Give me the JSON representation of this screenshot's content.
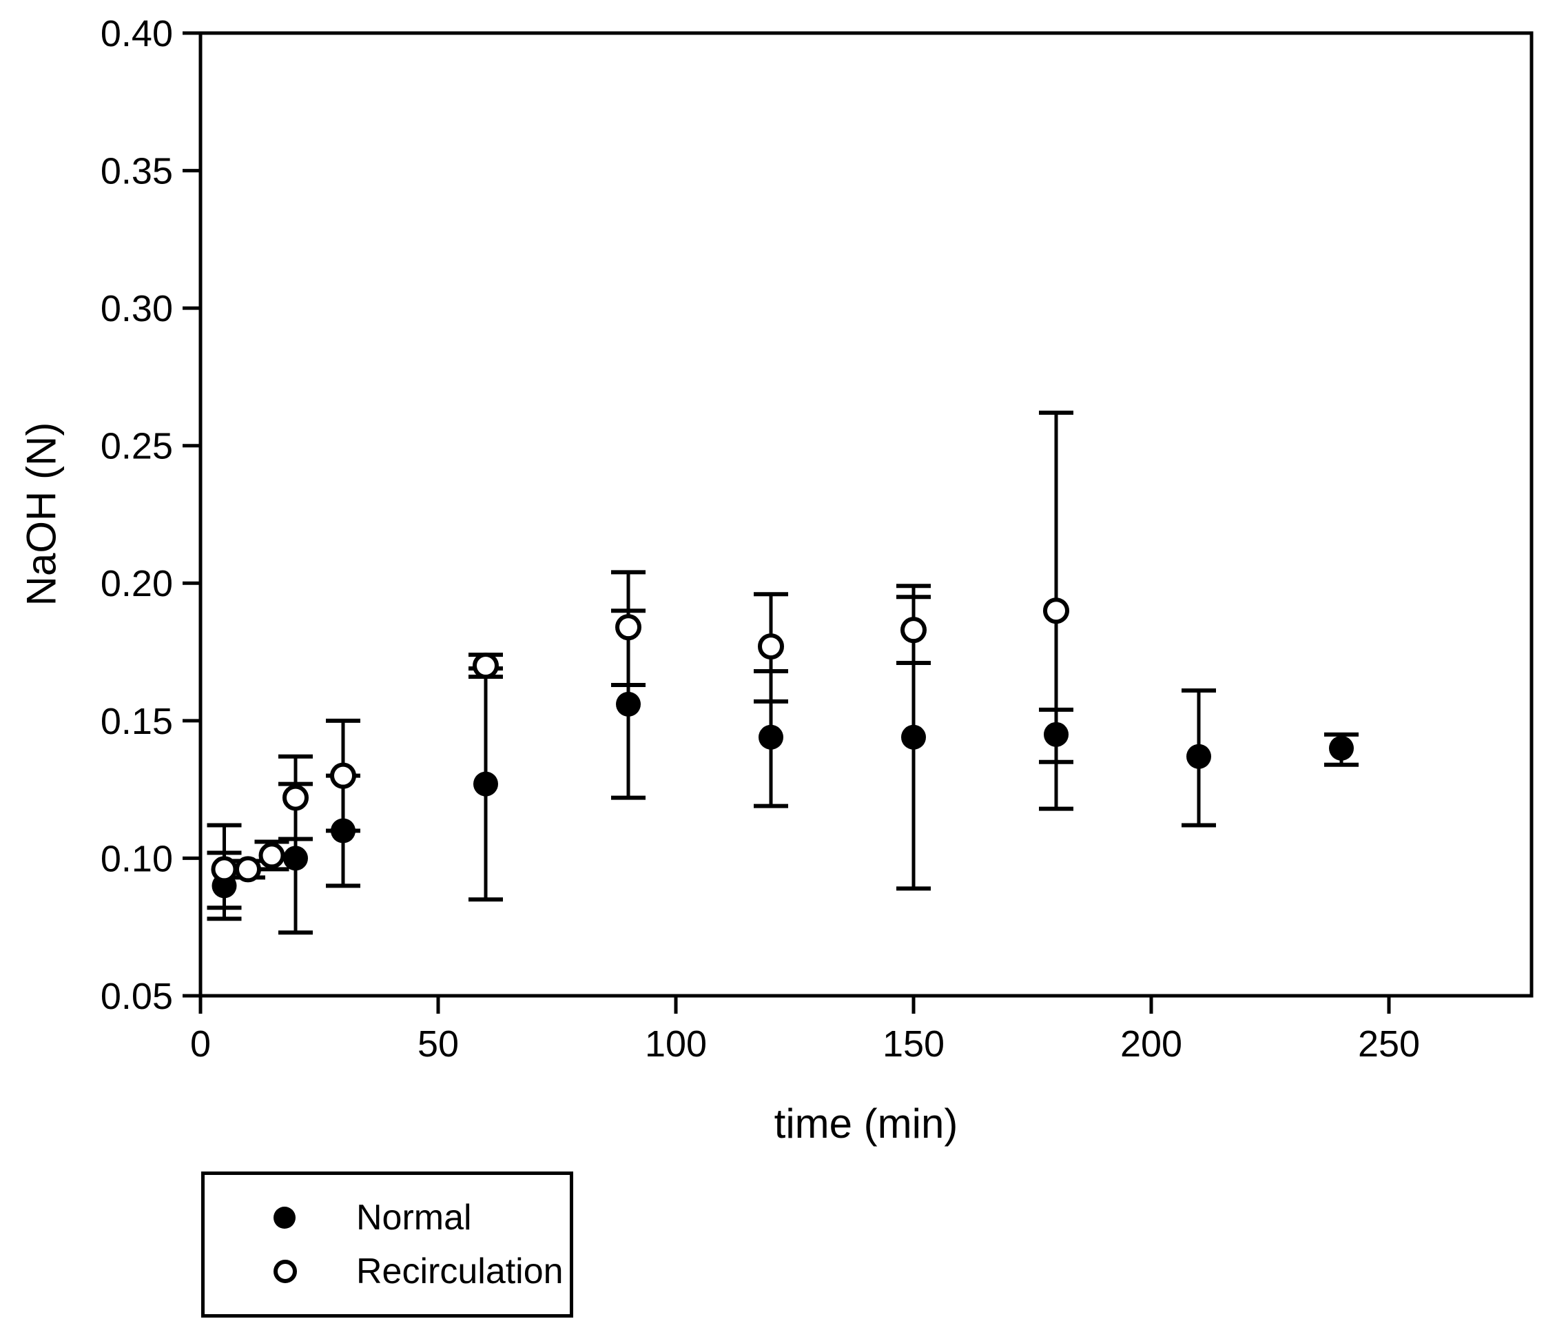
{
  "figure": {
    "background_color": "#ffffff",
    "axis_color": "#000000",
    "text_color": "#000000"
  },
  "legend": {
    "items": [
      {
        "label": "Normal",
        "marker": "filled-circle"
      },
      {
        "label": "Recirculation",
        "marker": "open-circle"
      }
    ]
  },
  "chart_data": {
    "type": "scatter",
    "title": "",
    "xlabel": "time (min)",
    "ylabel": "NaOH (N)",
    "xlim": [
      0,
      280
    ],
    "ylim": [
      0.05,
      0.4
    ],
    "x_ticks": [
      0,
      50,
      100,
      150,
      200,
      250
    ],
    "y_ticks": [
      0.05,
      0.1,
      0.15,
      0.2,
      0.25,
      0.3,
      0.35,
      0.4
    ],
    "y_tick_decimals": 2,
    "grid": false,
    "error_bars": true,
    "legend_position": "below-left",
    "series": [
      {
        "name": "Normal",
        "marker": "filled-circle",
        "color": "#000000",
        "points": [
          {
            "x": 5,
            "y": 0.09,
            "err_minus": 0.012,
            "err_plus": 0.012
          },
          {
            "x": 20,
            "y": 0.1,
            "err_minus": 0.027,
            "err_plus": 0.027
          },
          {
            "x": 30,
            "y": 0.11,
            "err_minus": 0.02,
            "err_plus": 0.02
          },
          {
            "x": 60,
            "y": 0.127,
            "err_minus": 0.042,
            "err_plus": 0.042
          },
          {
            "x": 90,
            "y": 0.156,
            "err_minus": 0.034,
            "err_plus": 0.034
          },
          {
            "x": 120,
            "y": 0.144,
            "err_minus": 0.025,
            "err_plus": 0.024
          },
          {
            "x": 150,
            "y": 0.144,
            "err_minus": 0.055,
            "err_plus": 0.055
          },
          {
            "x": 180,
            "y": 0.145,
            "err_minus": 0.01,
            "err_plus": 0.009
          },
          {
            "x": 210,
            "y": 0.137,
            "err_minus": 0.025,
            "err_plus": 0.024
          },
          {
            "x": 240,
            "y": 0.14,
            "err_minus": 0.006,
            "err_plus": 0.005
          }
        ]
      },
      {
        "name": "Recirculation",
        "marker": "open-circle",
        "color": "#000000",
        "points": [
          {
            "x": 5,
            "y": 0.096,
            "err_minus": 0.014,
            "err_plus": 0.016
          },
          {
            "x": 10,
            "y": 0.096,
            "err_minus": 0.003,
            "err_plus": 0.003
          },
          {
            "x": 15,
            "y": 0.101,
            "err_minus": 0.005,
            "err_plus": 0.005
          },
          {
            "x": 20,
            "y": 0.122,
            "err_minus": 0.015,
            "err_plus": 0.015
          },
          {
            "x": 30,
            "y": 0.13,
            "err_minus": 0.02,
            "err_plus": 0.02
          },
          {
            "x": 60,
            "y": 0.17,
            "err_minus": 0.004,
            "err_plus": 0.004
          },
          {
            "x": 90,
            "y": 0.184,
            "err_minus": 0.021,
            "err_plus": 0.02
          },
          {
            "x": 120,
            "y": 0.177,
            "err_minus": 0.02,
            "err_plus": 0.019
          },
          {
            "x": 150,
            "y": 0.183,
            "err_minus": 0.012,
            "err_plus": 0.012
          },
          {
            "x": 180,
            "y": 0.19,
            "err_minus": 0.072,
            "err_plus": 0.072
          }
        ]
      }
    ]
  }
}
